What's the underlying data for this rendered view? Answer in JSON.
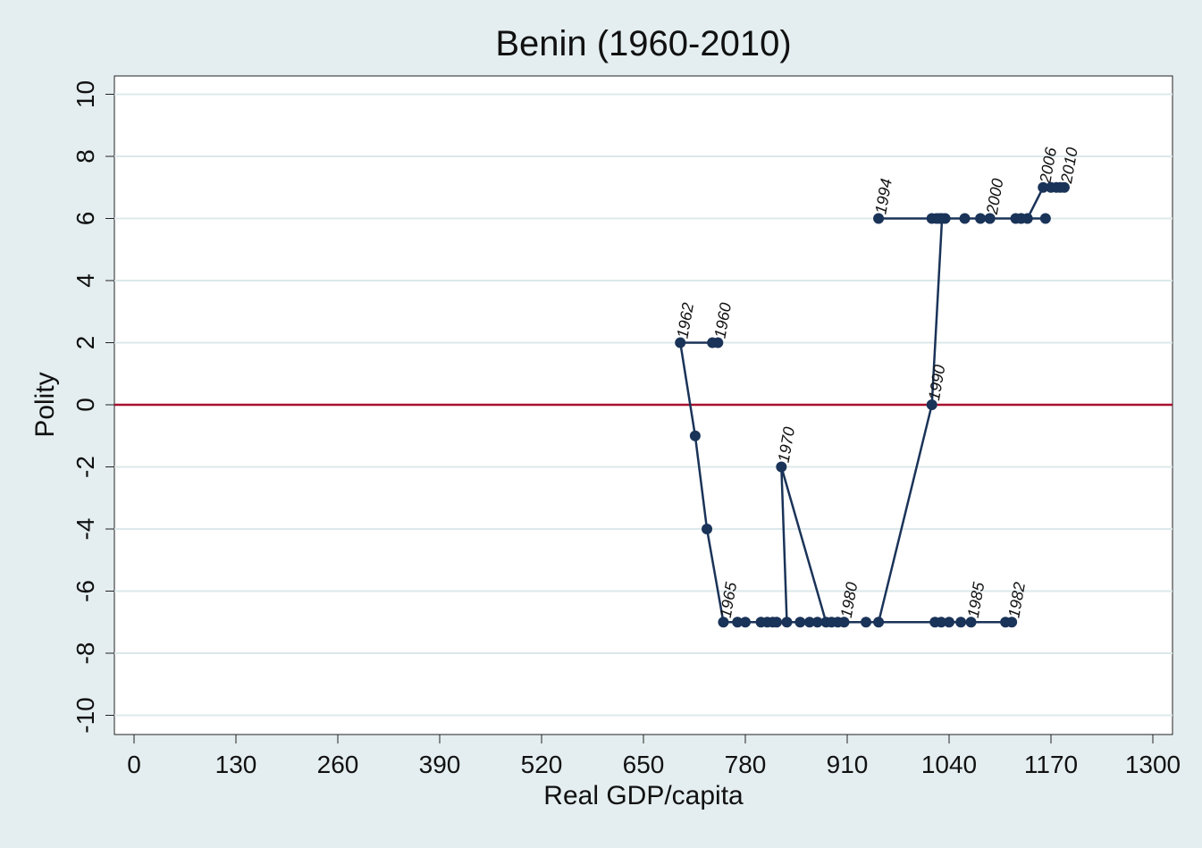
{
  "chart_data": {
    "type": "line",
    "title": "Benin (1960-2010)",
    "xlabel": "Real GDP/capita",
    "ylabel": "Polity",
    "xlim": [
      -20,
      1330
    ],
    "ylim": [
      -11,
      11.2
    ],
    "xticks": [
      0,
      130,
      260,
      390,
      520,
      650,
      780,
      910,
      1040,
      1170,
      1300
    ],
    "yticks": [
      -10,
      -8,
      -6,
      -4,
      -2,
      0,
      2,
      4,
      6,
      8,
      10
    ],
    "grid": true,
    "reference_line": {
      "y": 0,
      "color": "#a8102e"
    },
    "series_color": "#1a3358",
    "points": [
      {
        "year": 1960,
        "x": 745,
        "y": 2,
        "label": "1960"
      },
      {
        "year": 1961,
        "x": 738,
        "y": 2
      },
      {
        "year": 1962,
        "x": 697,
        "y": 2,
        "label": "1962"
      },
      {
        "year": 1963,
        "x": 716,
        "y": -1
      },
      {
        "year": 1964,
        "x": 731,
        "y": -4
      },
      {
        "year": 1965,
        "x": 752,
        "y": -7,
        "label": "1965"
      },
      {
        "year": 1966,
        "x": 770,
        "y": -7
      },
      {
        "year": 1967,
        "x": 808,
        "y": -7
      },
      {
        "year": 1968,
        "x": 850,
        "y": -7
      },
      {
        "year": 1969,
        "x": 883,
        "y": -7
      },
      {
        "year": 1970,
        "x": 826,
        "y": -2,
        "label": "1970"
      },
      {
        "year": 1971,
        "x": 833,
        "y": -7
      },
      {
        "year": 1972,
        "x": 862,
        "y": -7
      },
      {
        "year": 1973,
        "x": 872,
        "y": -7
      },
      {
        "year": 1974,
        "x": 815,
        "y": -7
      },
      {
        "year": 1975,
        "x": 800,
        "y": -7
      },
      {
        "year": 1976,
        "x": 780,
        "y": -7
      },
      {
        "year": 1977,
        "x": 820,
        "y": -7
      },
      {
        "year": 1978,
        "x": 890,
        "y": -7
      },
      {
        "year": 1979,
        "x": 898,
        "y": -7
      },
      {
        "year": 1980,
        "x": 906,
        "y": -7,
        "label": "1980"
      },
      {
        "year": 1981,
        "x": 1112,
        "y": -7
      },
      {
        "year": 1982,
        "x": 1120,
        "y": -7,
        "label": "1982"
      },
      {
        "year": 1983,
        "x": 1040,
        "y": -7
      },
      {
        "year": 1984,
        "x": 1055,
        "y": -7
      },
      {
        "year": 1985,
        "x": 1068,
        "y": -7,
        "label": "1985"
      },
      {
        "year": 1986,
        "x": 1030,
        "y": -7
      },
      {
        "year": 1987,
        "x": 1022,
        "y": -7
      },
      {
        "year": 1988,
        "x": 934,
        "y": -7
      },
      {
        "year": 1989,
        "x": 950,
        "y": -7
      },
      {
        "year": 1990,
        "x": 1018,
        "y": 0,
        "label": "1990"
      },
      {
        "year": 1991,
        "x": 1031,
        "y": 6
      },
      {
        "year": 1992,
        "x": 1024,
        "y": 6
      },
      {
        "year": 1993,
        "x": 1018,
        "y": 6
      },
      {
        "year": 1994,
        "x": 950,
        "y": 6,
        "label": "1994"
      },
      {
        "year": 1995,
        "x": 1028,
        "y": 6
      },
      {
        "year": 1996,
        "x": 1035,
        "y": 6
      },
      {
        "year": 1997,
        "x": 1060,
        "y": 6
      },
      {
        "year": 1998,
        "x": 1080,
        "y": 6
      },
      {
        "year": 1999,
        "x": 1092,
        "y": 6
      },
      {
        "year": 2000,
        "x": 1092,
        "y": 6,
        "label": "2000"
      },
      {
        "year": 2001,
        "x": 1125,
        "y": 6
      },
      {
        "year": 2002,
        "x": 1132,
        "y": 6
      },
      {
        "year": 2003,
        "x": 1163,
        "y": 6
      },
      {
        "year": 2004,
        "x": 1132,
        "y": 6
      },
      {
        "year": 2005,
        "x": 1140,
        "y": 6
      },
      {
        "year": 2006,
        "x": 1160,
        "y": 7,
        "label": "2006"
      },
      {
        "year": 2007,
        "x": 1170,
        "y": 7
      },
      {
        "year": 2008,
        "x": 1177,
        "y": 7
      },
      {
        "year": 2009,
        "x": 1182,
        "y": 7
      },
      {
        "year": 2010,
        "x": 1187,
        "y": 7,
        "label": "2010"
      }
    ]
  }
}
